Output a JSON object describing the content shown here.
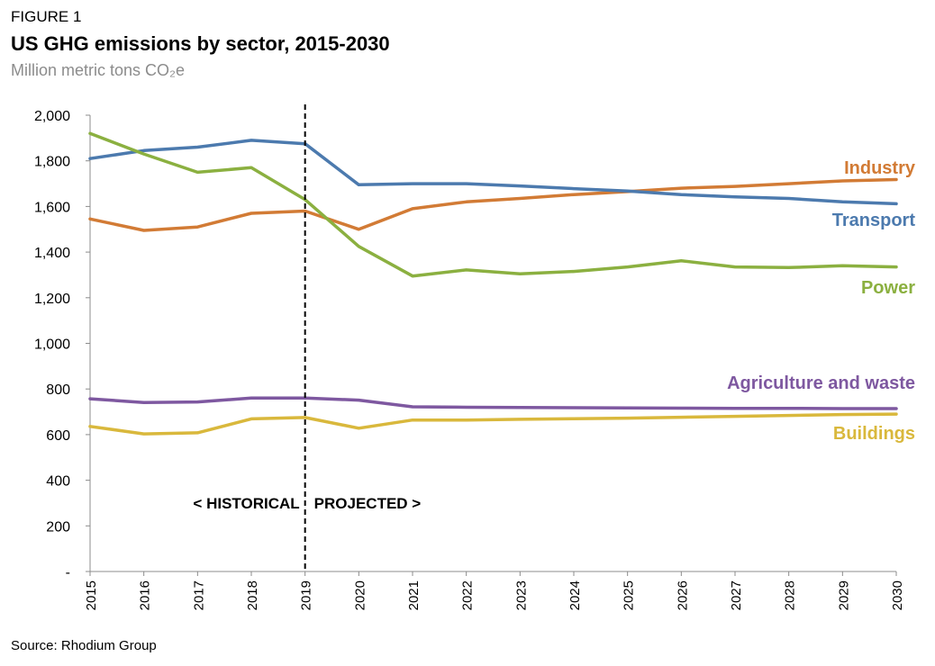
{
  "figure": {
    "label": "FIGURE 1",
    "title": "US GHG emissions by sector, 2015-2030",
    "subtitle": "Million metric tons CO₂e",
    "source": "Source: Rhodium Group"
  },
  "annotations": {
    "historical": "< HISTORICAL",
    "projected": "PROJECTED >",
    "divider_year": "2019"
  },
  "chart_data": {
    "type": "line",
    "x": [
      "2015",
      "2016",
      "2017",
      "2018",
      "2019",
      "2020",
      "2021",
      "2022",
      "2023",
      "2024",
      "2025",
      "2026",
      "2027",
      "2028",
      "2029",
      "2030"
    ],
    "ylim": [
      0,
      2000
    ],
    "yticks": [
      0,
      200,
      400,
      600,
      800,
      1000,
      1200,
      1400,
      1600,
      1800,
      2000
    ],
    "ytick_labels": [
      "-",
      "200",
      "400",
      "600",
      "800",
      "1,000",
      "1,200",
      "1,400",
      "1,600",
      "1,800",
      "2,000"
    ],
    "grid": false,
    "legend": "inline labels at right end of lines",
    "series": [
      {
        "name": "Industry",
        "color": "#D27B35",
        "values": [
          1545,
          1495,
          1510,
          1570,
          1580,
          1500,
          1590,
          1620,
          1635,
          1652,
          1665,
          1680,
          1688,
          1700,
          1712,
          1718
        ]
      },
      {
        "name": "Transport",
        "color": "#4C7AAE",
        "values": [
          1810,
          1845,
          1860,
          1890,
          1875,
          1695,
          1700,
          1700,
          1690,
          1678,
          1668,
          1652,
          1642,
          1635,
          1620,
          1612
        ]
      },
      {
        "name": "Power",
        "color": "#8BB040",
        "values": [
          1920,
          1830,
          1750,
          1770,
          1630,
          1425,
          1295,
          1322,
          1305,
          1315,
          1335,
          1362,
          1335,
          1332,
          1340,
          1335
        ]
      },
      {
        "name": "Agriculture and waste",
        "color": "#7E58A0",
        "values": [
          757,
          741,
          743,
          760,
          760,
          751,
          722,
          720,
          719,
          718,
          717,
          716,
          715,
          715,
          714,
          714
        ]
      },
      {
        "name": "Buildings",
        "color": "#D9B83C",
        "values": [
          636,
          603,
          608,
          669,
          675,
          628,
          664,
          664,
          667,
          670,
          672,
          676,
          680,
          684,
          688,
          690
        ]
      }
    ]
  }
}
